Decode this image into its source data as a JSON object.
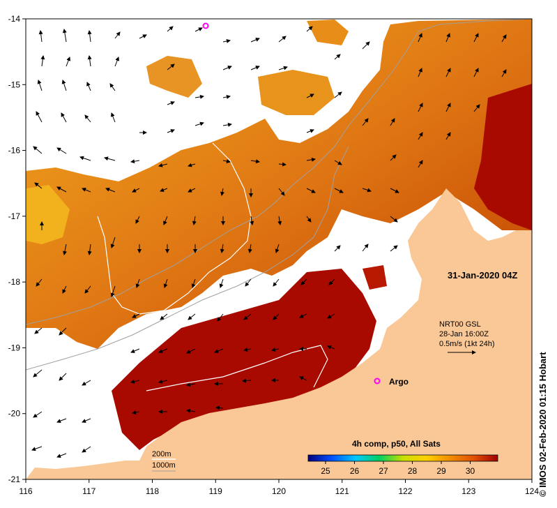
{
  "title_timestamp": "31-Jan-2020 04Z",
  "current_info": {
    "line1": "NRT00 GSL",
    "line2": "28-Jan 16:00Z",
    "line3": "0.5m/s (1kt 24h)"
  },
  "argo_label": "Argo",
  "contour_labels": {
    "c200": "200m",
    "c1000": "1000m"
  },
  "colorbar": {
    "title": "4h comp, p50, All Sats",
    "ticks": [
      "25",
      "26",
      "27",
      "28",
      "29",
      "30"
    ],
    "colors": [
      "#000080",
      "#0050ff",
      "#00c8ff",
      "#00d060",
      "#c8e000",
      "#ffd000",
      "#f08c00",
      "#e05000",
      "#a00000"
    ]
  },
  "credit": "© IMOS 02-Feb-2020 01:15 Hobart",
  "axes": {
    "x_ticks": [
      "116",
      "117",
      "118",
      "119",
      "120",
      "121",
      "122",
      "123",
      "124"
    ],
    "y_ticks": [
      "-14",
      "-15",
      "-16",
      "-17",
      "-18",
      "-19",
      "-20",
      "-21"
    ]
  },
  "colors": {
    "land": "#fac896",
    "sst_warm": "#e89020",
    "sst_hot": "#a80a00",
    "argo_marker": "#ff00ff"
  }
}
